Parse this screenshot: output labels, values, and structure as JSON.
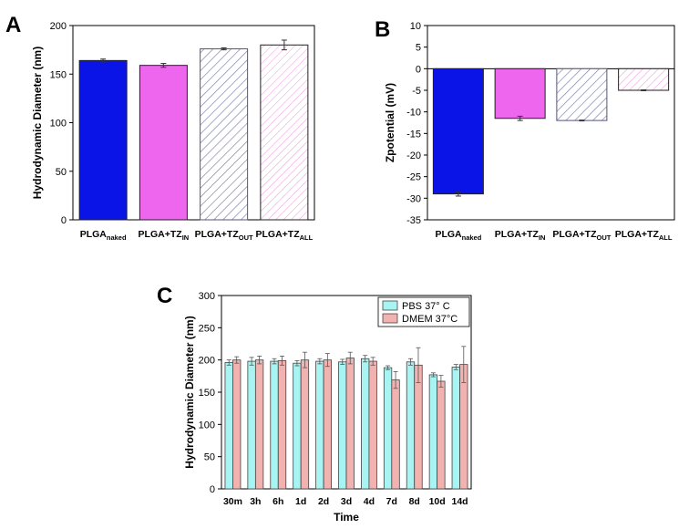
{
  "chart_data": [
    {
      "panel": "A",
      "type": "bar",
      "ylabel": "Hydrodynamic Diameter (nm)",
      "ylim": [
        0,
        200
      ],
      "yticks": [
        0,
        50,
        100,
        150,
        200
      ],
      "categories": [
        {
          "base": "PLGA",
          "sub": "naked"
        },
        {
          "base": "PLGA+TZ",
          "sub": "IN"
        },
        {
          "base": "PLGA+TZ",
          "sub": "OUT"
        },
        {
          "base": "PLGA+TZ",
          "sub": "ALL"
        }
      ],
      "values": [
        164,
        159,
        176,
        180
      ],
      "errors": [
        1.5,
        2,
        1,
        5
      ],
      "colors": [
        "#0a14e6",
        "#ee66ee",
        "#7b7ba6",
        "#ee88dd"
      ],
      "fills": [
        "solid",
        "solid",
        "hatch",
        "hatch"
      ]
    },
    {
      "panel": "B",
      "type": "bar",
      "ylabel": "Zpotential (mV)",
      "ylim": [
        -35,
        10
      ],
      "yticks": [
        -35,
        -30,
        -25,
        -20,
        -15,
        -10,
        -5,
        0,
        5,
        10
      ],
      "categories": [
        {
          "base": "PLGA",
          "sub": "naked"
        },
        {
          "base": "PLGA+TZ",
          "sub": "IN"
        },
        {
          "base": "PLGA+TZ",
          "sub": "OUT"
        },
        {
          "base": "PLGA+TZ",
          "sub": "ALL"
        }
      ],
      "values": [
        -29,
        -11.5,
        -12,
        -5
      ],
      "errors": [
        0.5,
        0.5,
        0.1,
        0.1
      ],
      "colors": [
        "#0a14e6",
        "#ee66ee",
        "#7b7ba6",
        "#ee88dd"
      ],
      "fills": [
        "solid",
        "solid",
        "hatch",
        "hatch"
      ]
    },
    {
      "panel": "C",
      "type": "bar",
      "xlabel": "Time",
      "ylabel": "Hydrodynamic Diameter (nm)",
      "ylim": [
        0,
        300
      ],
      "yticks": [
        0,
        50,
        100,
        150,
        200,
        250,
        300
      ],
      "categories": [
        "30m",
        "3h",
        "6h",
        "1d",
        "2d",
        "3d",
        "4d",
        "7d",
        "8d",
        "10d",
        "14d"
      ],
      "series": [
        {
          "name": "PBS 37° C",
          "color": "#a8f4f2",
          "values": [
            196,
            198,
            198,
            195,
            198,
            197,
            202,
            188,
            197,
            177,
            189
          ],
          "errors": [
            4,
            6,
            4,
            4,
            4,
            4,
            5,
            3,
            5,
            3,
            4
          ]
        },
        {
          "name": "DMEM 37°C",
          "color": "#f2b2b0",
          "values": [
            200,
            200,
            199,
            200,
            200,
            203,
            198,
            169,
            192,
            167,
            193
          ],
          "errors": [
            5,
            6,
            7,
            12,
            10,
            9,
            6,
            13,
            27,
            9,
            28
          ]
        }
      ],
      "legend_position": "top-right"
    }
  ]
}
